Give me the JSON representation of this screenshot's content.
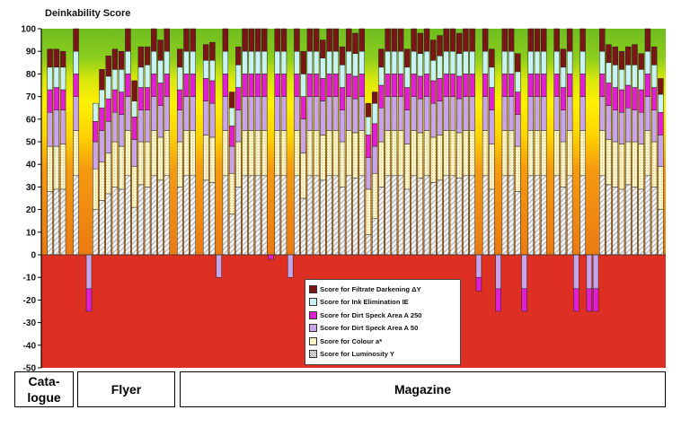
{
  "chart_data": {
    "type": "stacked-bar",
    "ylabel": "Deinkability Score",
    "ylim": [
      -50,
      100
    ],
    "yticks": [
      -50,
      -40,
      -30,
      -20,
      -10,
      0,
      10,
      20,
      30,
      40,
      50,
      60,
      70,
      80,
      90,
      100
    ],
    "background_bands": [
      {
        "label": "negative",
        "color": "#dd3022"
      },
      {
        "label": "low",
        "color": "#f08a12"
      },
      {
        "label": "mid",
        "color": "#ffe100"
      },
      {
        "label": "high",
        "color": "#78c11c"
      }
    ],
    "series": [
      {
        "name": "Score for Filtrate Darkening ΔY",
        "color": "#7a1616"
      },
      {
        "name": "Score for Ink Elimination IE",
        "color": "#c9f2f5"
      },
      {
        "name": "Score for Dirt Speck Area A 250",
        "color": "#e01ed2"
      },
      {
        "name": "Score for Dirt Speck Area A 50",
        "color": "#c8a5e8"
      },
      {
        "name": "Score for Colour a*",
        "color": "#fbf3c6"
      },
      {
        "name": "Score for Luminosity Y",
        "color": "#dcdcdc"
      }
    ],
    "groups": [
      {
        "label": "Cata-\nlogue",
        "bars": [
          [
            28,
            20,
            15,
            10,
            10,
            8
          ],
          [
            29,
            19,
            16,
            10,
            9,
            8
          ],
          [
            29,
            20,
            15,
            9,
            10,
            7
          ]
        ]
      },
      {
        "label": "Flyer",
        "bars": [
          null,
          [
            35,
            20,
            15,
            10,
            10,
            10
          ],
          null,
          [
            0,
            0,
            -15,
            -10,
            0,
            0
          ],
          [
            20,
            18,
            12,
            9,
            8,
            0
          ],
          [
            24,
            17,
            14,
            10,
            8,
            9
          ],
          [
            27,
            18,
            14,
            10,
            10,
            9
          ],
          [
            30,
            20,
            13,
            10,
            9,
            9
          ],
          [
            29,
            19,
            14,
            10,
            10,
            8
          ],
          [
            35,
            20,
            15,
            10,
            10,
            10
          ],
          [
            21,
            18,
            12,
            10,
            7,
            9
          ],
          [
            31,
            19,
            14,
            10,
            9,
            9
          ],
          [
            30,
            20,
            14,
            10,
            10,
            8
          ],
          [
            35,
            20,
            15,
            10,
            10,
            10
          ],
          [
            33,
            19,
            14,
            10,
            10,
            9
          ],
          [
            35,
            20,
            15,
            10,
            10,
            10
          ],
          null,
          [
            30,
            20,
            14,
            9,
            10,
            8
          ],
          [
            35,
            20,
            15,
            10,
            10,
            10
          ],
          [
            35,
            20,
            15,
            10,
            10,
            10
          ]
        ]
      },
      {
        "label": "Magazine",
        "bars": [
          null,
          [
            33,
            20,
            15,
            10,
            8,
            7
          ],
          [
            32,
            20,
            15,
            10,
            9,
            8
          ],
          [
            0,
            0,
            -10,
            0,
            0,
            0
          ],
          [
            35,
            20,
            15,
            10,
            10,
            10
          ],
          [
            18,
            18,
            12,
            9,
            8,
            7
          ],
          [
            30,
            20,
            14,
            10,
            10,
            8
          ],
          [
            35,
            20,
            15,
            10,
            10,
            10
          ],
          [
            35,
            20,
            15,
            10,
            10,
            10
          ],
          [
            35,
            20,
            15,
            10,
            10,
            10
          ],
          [
            35,
            20,
            15,
            10,
            10,
            10
          ],
          [
            0,
            0,
            0,
            -2,
            0,
            0
          ],
          [
            35,
            20,
            15,
            10,
            10,
            10
          ],
          [
            35,
            20,
            15,
            10,
            10,
            10
          ],
          [
            0,
            0,
            -10,
            0,
            0,
            0
          ],
          [
            35,
            20,
            15,
            10,
            10,
            10
          ],
          [
            25,
            20,
            15,
            10,
            10,
            10
          ],
          [
            35,
            20,
            15,
            10,
            10,
            10
          ],
          [
            35,
            20,
            15,
            10,
            10,
            10
          ],
          [
            33,
            20,
            15,
            10,
            9,
            8
          ],
          [
            35,
            20,
            15,
            10,
            10,
            10
          ],
          [
            35,
            20,
            15,
            10,
            10,
            10
          ],
          [
            30,
            20,
            14,
            10,
            10,
            8
          ],
          [
            35,
            20,
            15,
            10,
            10,
            10
          ],
          [
            34,
            20,
            15,
            10,
            10,
            9
          ],
          [
            35,
            20,
            15,
            10,
            10,
            10
          ],
          [
            9,
            20,
            14,
            10,
            8,
            6
          ],
          [
            16,
            20,
            12,
            10,
            9,
            5
          ],
          [
            30,
            20,
            15,
            10,
            8,
            8
          ],
          [
            35,
            20,
            15,
            10,
            10,
            10
          ],
          [
            35,
            20,
            15,
            10,
            10,
            10
          ],
          [
            35,
            20,
            15,
            10,
            10,
            10
          ],
          [
            29,
            20,
            15,
            10,
            9,
            8
          ],
          [
            35,
            20,
            15,
            10,
            10,
            10
          ],
          [
            34,
            20,
            15,
            10,
            10,
            9
          ],
          [
            35,
            20,
            15,
            10,
            10,
            10
          ],
          [
            32,
            20,
            15,
            10,
            9,
            9
          ],
          [
            33,
            20,
            15,
            10,
            10,
            9
          ],
          [
            35,
            20,
            15,
            10,
            10,
            10
          ],
          [
            35,
            20,
            15,
            10,
            10,
            10
          ],
          [
            34,
            20,
            15,
            10,
            10,
            9
          ],
          [
            35,
            20,
            15,
            10,
            10,
            10
          ],
          [
            35,
            20,
            15,
            10,
            10,
            10
          ],
          [
            0,
            0,
            -10,
            -6,
            0,
            0
          ],
          [
            35,
            20,
            15,
            10,
            10,
            10
          ],
          [
            29,
            20,
            15,
            10,
            9,
            8
          ],
          [
            0,
            0,
            -15,
            -10,
            0,
            0
          ],
          [
            35,
            20,
            15,
            10,
            10,
            10
          ],
          [
            35,
            20,
            15,
            10,
            10,
            10
          ],
          [
            28,
            20,
            14,
            10,
            9,
            8
          ],
          [
            0,
            0,
            -15,
            -10,
            0,
            0
          ],
          [
            35,
            20,
            15,
            10,
            10,
            10
          ],
          [
            35,
            20,
            15,
            10,
            10,
            10
          ],
          [
            35,
            20,
            15,
            10,
            10,
            10
          ],
          [
            0,
            0,
            0,
            0,
            0,
            0
          ],
          [
            35,
            20,
            15,
            10,
            10,
            10
          ],
          [
            30,
            20,
            14,
            10,
            9,
            8
          ],
          [
            35,
            20,
            15,
            10,
            10,
            10
          ],
          [
            0,
            0,
            -15,
            -10,
            0,
            0
          ],
          [
            35,
            20,
            15,
            10,
            10,
            10
          ],
          [
            0,
            0,
            -15,
            -10,
            0,
            0
          ],
          [
            0,
            0,
            -15,
            -10,
            0,
            0
          ],
          [
            35,
            20,
            15,
            10,
            10,
            10
          ],
          [
            31,
            20,
            15,
            10,
            9,
            8
          ],
          [
            30,
            20,
            14,
            10,
            10,
            8
          ],
          [
            29,
            20,
            14,
            10,
            9,
            8
          ],
          [
            31,
            19,
            15,
            10,
            9,
            8
          ],
          [
            30,
            20,
            14,
            10,
            10,
            9
          ],
          [
            29,
            20,
            14,
            10,
            9,
            7
          ],
          [
            35,
            20,
            15,
            10,
            10,
            10
          ],
          [
            30,
            20,
            14,
            10,
            10,
            8
          ],
          [
            20,
            19,
            14,
            10,
            8,
            7
          ]
        ]
      }
    ]
  }
}
